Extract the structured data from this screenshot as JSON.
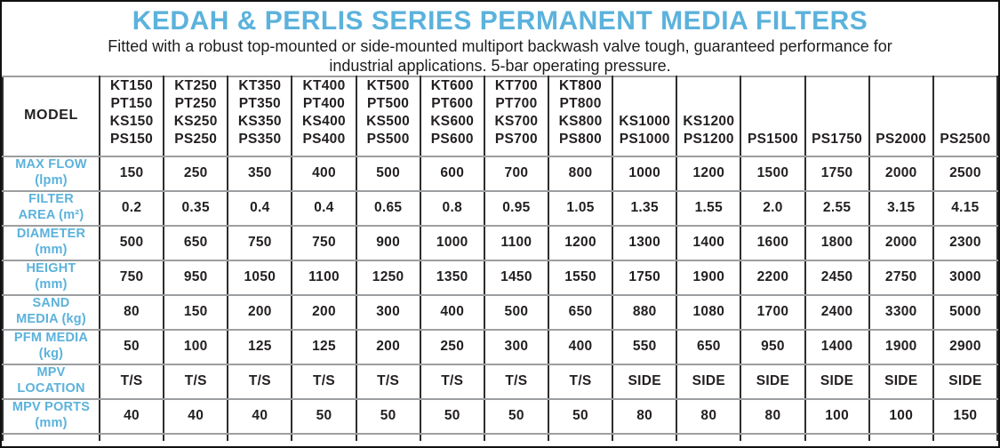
{
  "header": {
    "title": "KEDAH & PERLIS SERIES PERMANENT MEDIA FILTERS",
    "subtitle": "Fitted with a robust top-mounted or side-mounted multiport backwash valve tough, guaranteed performance for\nindustrial applications. 5-bar operating pressure."
  },
  "colors": {
    "accent_blue": "#5BB2DC",
    "text_dark": "#231F20",
    "border_horizontal": "#9C9EA0",
    "border_vertical": "#2D2D2D"
  },
  "table": {
    "model_header": "MODEL",
    "columns": [
      {
        "models": [
          "KT150",
          "PT150",
          "KS150",
          "PS150"
        ]
      },
      {
        "models": [
          "KT250",
          "PT250",
          "KS250",
          "PS250"
        ]
      },
      {
        "models": [
          "KT350",
          "PT350",
          "KS350",
          "PS350"
        ]
      },
      {
        "models": [
          "KT400",
          "PT400",
          "KS400",
          "PS400"
        ]
      },
      {
        "models": [
          "KT500",
          "PT500",
          "KS500",
          "PS500"
        ]
      },
      {
        "models": [
          "KT600",
          "PT600",
          "KS600",
          "PS600"
        ]
      },
      {
        "models": [
          "KT700",
          "PT700",
          "KS700",
          "PS700"
        ]
      },
      {
        "models": [
          "KT800",
          "PT800",
          "KS800",
          "PS800"
        ]
      },
      {
        "models": [
          "KS1000",
          "PS1000"
        ]
      },
      {
        "models": [
          "KS1200",
          "PS1200"
        ]
      },
      {
        "models": [
          "PS1500"
        ]
      },
      {
        "models": [
          "PS1750"
        ]
      },
      {
        "models": [
          "PS2000"
        ]
      },
      {
        "models": [
          "PS2500"
        ]
      }
    ],
    "rows": [
      {
        "id": "max-flow",
        "label_lines": [
          "MAX FLOW",
          "(lpm)"
        ],
        "values": [
          "150",
          "250",
          "350",
          "400",
          "500",
          "600",
          "700",
          "800",
          "1000",
          "1200",
          "1500",
          "1750",
          "2000",
          "2500"
        ]
      },
      {
        "id": "filter-area",
        "label_lines": [
          "FILTER",
          "AREA (m²)"
        ],
        "values": [
          "0.2",
          "0.35",
          "0.4",
          "0.4",
          "0.65",
          "0.8",
          "0.95",
          "1.05",
          "1.35",
          "1.55",
          "2.0",
          "2.55",
          "3.15",
          "4.15"
        ]
      },
      {
        "id": "diameter",
        "label_lines": [
          "DIAMETER",
          "(mm)"
        ],
        "values": [
          "500",
          "650",
          "750",
          "750",
          "900",
          "1000",
          "1100",
          "1200",
          "1300",
          "1400",
          "1600",
          "1800",
          "2000",
          "2300"
        ]
      },
      {
        "id": "height",
        "label_lines": [
          "HEIGHT",
          "(mm)"
        ],
        "values": [
          "750",
          "950",
          "1050",
          "1100",
          "1250",
          "1350",
          "1450",
          "1550",
          "1750",
          "1900",
          "2200",
          "2450",
          "2750",
          "3000"
        ]
      },
      {
        "id": "sand-media",
        "label_lines": [
          "SAND",
          "MEDIA (kg)"
        ],
        "values": [
          "80",
          "150",
          "200",
          "200",
          "300",
          "400",
          "500",
          "650",
          "880",
          "1080",
          "1700",
          "2400",
          "3300",
          "5000"
        ]
      },
      {
        "id": "pfm-media",
        "label_lines": [
          "PFM MEDIA",
          "(kg)"
        ],
        "values": [
          "50",
          "100",
          "125",
          "125",
          "200",
          "250",
          "300",
          "400",
          "550",
          "650",
          "950",
          "1400",
          "1900",
          "2900"
        ]
      },
      {
        "id": "mpv-location",
        "label_lines": [
          "MPV",
          "LOCATION"
        ],
        "values": [
          "T/S",
          "T/S",
          "T/S",
          "T/S",
          "T/S",
          "T/S",
          "T/S",
          "T/S",
          "SIDE",
          "SIDE",
          "SIDE",
          "SIDE",
          "SIDE",
          "SIDE"
        ]
      },
      {
        "id": "mpv-ports",
        "label_lines": [
          "MPV PORTS",
          "(mm)"
        ],
        "values": [
          "40",
          "40",
          "40",
          "50",
          "50",
          "50",
          "50",
          "50",
          "80",
          "80",
          "80",
          "100",
          "100",
          "150"
        ]
      }
    ]
  },
  "chart_data": {
    "type": "table",
    "title": "KEDAH & PERLIS SERIES PERMANENT MEDIA FILTERS",
    "categories": [
      "KT150/PT150/KS150/PS150",
      "KT250/PT250/KS250/PS250",
      "KT350/PT350/KS350/PS350",
      "KT400/PT400/KS400/PS400",
      "KT500/PT500/KS500/PS500",
      "KT600/PT600/KS600/PS600",
      "KT700/PT700/KS700/PS700",
      "KT800/PT800/KS800/PS800",
      "KS1000/PS1000",
      "KS1200/PS1200",
      "PS1500",
      "PS1750",
      "PS2000",
      "PS2500"
    ],
    "series": [
      {
        "name": "MAX FLOW (lpm)",
        "values": [
          150,
          250,
          350,
          400,
          500,
          600,
          700,
          800,
          1000,
          1200,
          1500,
          1750,
          2000,
          2500
        ]
      },
      {
        "name": "FILTER AREA (m²)",
        "values": [
          0.2,
          0.35,
          0.4,
          0.4,
          0.65,
          0.8,
          0.95,
          1.05,
          1.35,
          1.55,
          2.0,
          2.55,
          3.15,
          4.15
        ]
      },
      {
        "name": "DIAMETER (mm)",
        "values": [
          500,
          650,
          750,
          750,
          900,
          1000,
          1100,
          1200,
          1300,
          1400,
          1600,
          1800,
          2000,
          2300
        ]
      },
      {
        "name": "HEIGHT (mm)",
        "values": [
          750,
          950,
          1050,
          1100,
          1250,
          1350,
          1450,
          1550,
          1750,
          1900,
          2200,
          2450,
          2750,
          3000
        ]
      },
      {
        "name": "SAND MEDIA (kg)",
        "values": [
          80,
          150,
          200,
          200,
          300,
          400,
          500,
          650,
          880,
          1080,
          1700,
          2400,
          3300,
          5000
        ]
      },
      {
        "name": "PFM MEDIA (kg)",
        "values": [
          50,
          100,
          125,
          125,
          200,
          250,
          300,
          400,
          550,
          650,
          950,
          1400,
          1900,
          2900
        ]
      },
      {
        "name": "MPV LOCATION",
        "values": [
          "T/S",
          "T/S",
          "T/S",
          "T/S",
          "T/S",
          "T/S",
          "T/S",
          "T/S",
          "SIDE",
          "SIDE",
          "SIDE",
          "SIDE",
          "SIDE",
          "SIDE"
        ]
      },
      {
        "name": "MPV PORTS (mm)",
        "values": [
          40,
          40,
          40,
          50,
          50,
          50,
          50,
          50,
          80,
          80,
          80,
          100,
          100,
          150
        ]
      }
    ]
  }
}
